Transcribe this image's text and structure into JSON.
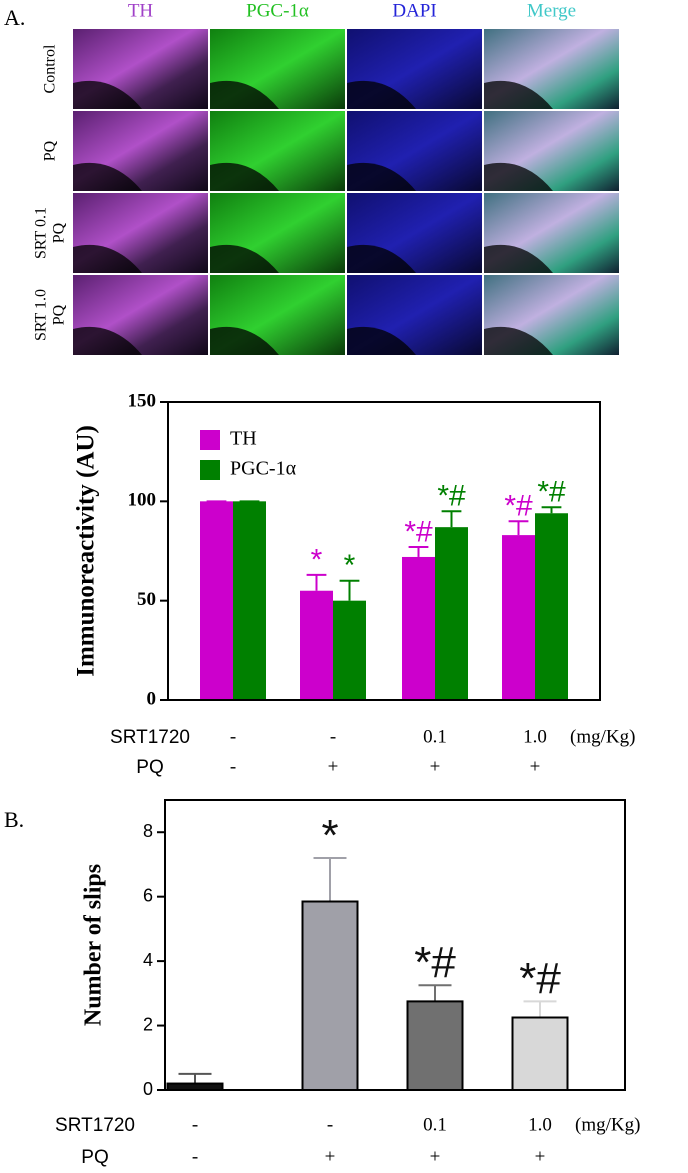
{
  "panel_labels": [
    "A.",
    "B."
  ],
  "micrographs": {
    "columns": [
      {
        "label": "TH",
        "color": "#a040c8"
      },
      {
        "label": "PGC-1α",
        "color": "#22c022"
      },
      {
        "label": "DAPI",
        "color": "#2424d8"
      },
      {
        "label": "Merge",
        "color": "#40c8c8"
      }
    ],
    "rows": [
      [
        "Control"
      ],
      [
        "PQ"
      ],
      [
        "SRT 0.1",
        "PQ"
      ],
      [
        "SRT 1.0",
        "PQ"
      ]
    ]
  },
  "chart_data": [
    {
      "type": "bar",
      "y_label": "Immunoreactivity (AU)",
      "categories": [
        null,
        null,
        null,
        null
      ],
      "series": [
        {
          "name": "TH",
          "color": "#cc00cc",
          "values": [
            100,
            55,
            72,
            83
          ],
          "errors": [
            0,
            8,
            5,
            7
          ],
          "annotations": [
            null,
            "*",
            "*#",
            "*#"
          ]
        },
        {
          "name": "PGC-1α",
          "color": "#008000",
          "values": [
            100,
            50,
            87,
            94
          ],
          "errors": [
            0,
            10,
            8,
            3
          ],
          "annotations": [
            null,
            "*",
            "*#",
            "*#"
          ]
        }
      ],
      "ylim": [
        0,
        150
      ],
      "yticks": [
        0,
        50,
        100,
        150
      ],
      "legend": "top-left",
      "x_table": [
        {
          "label": "SRT1720",
          "values": [
            "-",
            "-",
            "0.1",
            "1.0"
          ],
          "unit": "(mg/Kg)"
        },
        {
          "label": "PQ",
          "values": [
            "-",
            "+",
            "+",
            "+"
          ]
        }
      ]
    },
    {
      "type": "bar",
      "y_label": "Number of slips",
      "categories": [
        null,
        null,
        null,
        null
      ],
      "values": [
        0.2,
        5.85,
        2.75,
        2.25
      ],
      "errors": [
        0.3,
        1.35,
        0.5,
        0.5
      ],
      "colors": [
        "#111111",
        "#a0a0a8",
        "#707070",
        "#d8d8d8"
      ],
      "annotations": [
        null,
        "*",
        "*#",
        "*#"
      ],
      "annotation_color": "#111111",
      "ylim": [
        0,
        9
      ],
      "yticks": [
        0,
        2,
        4,
        6,
        8
      ],
      "x_table": [
        {
          "label": "SRT1720",
          "values": [
            "-",
            "-",
            "0.1",
            "1.0"
          ],
          "unit": "(mg/Kg)"
        },
        {
          "label": "PQ",
          "values": [
            "-",
            "+",
            "+",
            "+"
          ]
        }
      ]
    }
  ]
}
